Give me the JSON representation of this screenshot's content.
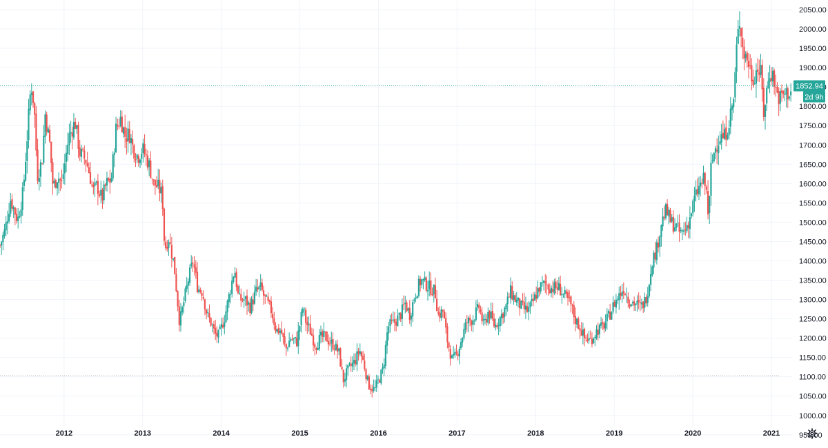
{
  "colors": {
    "up": "#26a69a",
    "down": "#ef5350",
    "grid": "#f0f3fa",
    "axis_text": "#131722",
    "price_line": "#26a69a",
    "reference_line": "#b2b5be",
    "background": "#ffffff"
  },
  "icons": {
    "settings": "gear-icon"
  },
  "chart_data": {
    "type": "candlestick",
    "interval": "weekly",
    "y_axis": {
      "position": "right",
      "ylim": [
        930,
        2075
      ],
      "ticks": [
        950,
        1000,
        1050,
        1100,
        1150,
        1200,
        1250,
        1300,
        1350,
        1400,
        1450,
        1500,
        1550,
        1600,
        1650,
        1700,
        1750,
        1800,
        1850,
        1900,
        1950,
        2000,
        2050
      ],
      "tick_labels": [
        "950.00",
        "1000.00",
        "1050.00",
        "1100.00",
        "1150.00",
        "1200.00",
        "1250.00",
        "1300.00",
        "1350.00",
        "1400.00",
        "1450.00",
        "1500.00",
        "1550.00",
        "1600.00",
        "1650.00",
        "1700.00",
        "1750.00",
        "1800.00",
        "1850.00",
        "1900.00",
        "1950.00",
        "2000.00",
        "2050.00"
      ]
    },
    "x_axis": {
      "xlim": [
        2011.185,
        2021.263
      ],
      "ticks": [
        2012,
        2013,
        2014,
        2015,
        2016,
        2017,
        2018,
        2019,
        2020,
        2021
      ],
      "tick_labels": [
        "2012",
        "2013",
        "2014",
        "2015",
        "2016",
        "2017",
        "2018",
        "2019",
        "2020",
        "2021"
      ]
    },
    "grid": true,
    "last_price": {
      "value": 1852.94,
      "label": "1852.94",
      "countdown": "2d 9h"
    },
    "reference_level": 1103,
    "anchors": [
      [
        2011.185,
        1440
      ],
      [
        2011.25,
        1480
      ],
      [
        2011.32,
        1560
      ],
      [
        2011.41,
        1505
      ],
      [
        2011.48,
        1580
      ],
      [
        2011.53,
        1720
      ],
      [
        2011.58,
        1860
      ],
      [
        2011.62,
        1800
      ],
      [
        2011.66,
        1620
      ],
      [
        2011.72,
        1660
      ],
      [
        2011.76,
        1780
      ],
      [
        2011.82,
        1700
      ],
      [
        2011.86,
        1590
      ],
      [
        2011.92,
        1620
      ],
      [
        2011.97,
        1600
      ],
      [
        2012.06,
        1720
      ],
      [
        2012.14,
        1760
      ],
      [
        2012.2,
        1680
      ],
      [
        2012.28,
        1660
      ],
      [
        2012.33,
        1620
      ],
      [
        2012.37,
        1580
      ],
      [
        2012.42,
        1595
      ],
      [
        2012.48,
        1560
      ],
      [
        2012.54,
        1600
      ],
      [
        2012.6,
        1610
      ],
      [
        2012.66,
        1740
      ],
      [
        2012.72,
        1770
      ],
      [
        2012.78,
        1720
      ],
      [
        2012.83,
        1730
      ],
      [
        2012.88,
        1690
      ],
      [
        2012.94,
        1670
      ],
      [
        2013.0,
        1690
      ],
      [
        2013.08,
        1650
      ],
      [
        2013.14,
        1600
      ],
      [
        2013.2,
        1590
      ],
      [
        2013.25,
        1570
      ],
      [
        2013.28,
        1430
      ],
      [
        2013.33,
        1460
      ],
      [
        2013.4,
        1390
      ],
      [
        2013.47,
        1240
      ],
      [
        2013.52,
        1290
      ],
      [
        2013.58,
        1350
      ],
      [
        2013.64,
        1400
      ],
      [
        2013.7,
        1330
      ],
      [
        2013.76,
        1320
      ],
      [
        2013.82,
        1260
      ],
      [
        2013.87,
        1240
      ],
      [
        2013.92,
        1210
      ],
      [
        2013.97,
        1205
      ],
      [
        2014.05,
        1260
      ],
      [
        2014.12,
        1330
      ],
      [
        2014.17,
        1380
      ],
      [
        2014.22,
        1300
      ],
      [
        2014.3,
        1300
      ],
      [
        2014.37,
        1280
      ],
      [
        2014.44,
        1320
      ],
      [
        2014.5,
        1330
      ],
      [
        2014.56,
        1300
      ],
      [
        2014.64,
        1270
      ],
      [
        2014.7,
        1220
      ],
      [
        2014.76,
        1220
      ],
      [
        2014.82,
        1170
      ],
      [
        2014.88,
        1200
      ],
      [
        2014.96,
        1190
      ],
      [
        2015.04,
        1280
      ],
      [
        2015.08,
        1240
      ],
      [
        2015.14,
        1215
      ],
      [
        2015.2,
        1180
      ],
      [
        2015.26,
        1200
      ],
      [
        2015.32,
        1205
      ],
      [
        2015.38,
        1190
      ],
      [
        2015.44,
        1180
      ],
      [
        2015.5,
        1160
      ],
      [
        2015.55,
        1090
      ],
      [
        2015.62,
        1120
      ],
      [
        2015.7,
        1140
      ],
      [
        2015.76,
        1170
      ],
      [
        2015.82,
        1130
      ],
      [
        2015.87,
        1080
      ],
      [
        2015.95,
        1065
      ],
      [
        2016.02,
        1100
      ],
      [
        2016.06,
        1120
      ],
      [
        2016.12,
        1230
      ],
      [
        2016.2,
        1240
      ],
      [
        2016.28,
        1260
      ],
      [
        2016.34,
        1290
      ],
      [
        2016.4,
        1260
      ],
      [
        2016.46,
        1310
      ],
      [
        2016.54,
        1350
      ],
      [
        2016.6,
        1340
      ],
      [
        2016.66,
        1330
      ],
      [
        2016.72,
        1320
      ],
      [
        2016.76,
        1260
      ],
      [
        2016.82,
        1270
      ],
      [
        2016.87,
        1200
      ],
      [
        2016.94,
        1140
      ],
      [
        2017.0,
        1160
      ],
      [
        2017.06,
        1200
      ],
      [
        2017.12,
        1240
      ],
      [
        2017.2,
        1250
      ],
      [
        2017.28,
        1280
      ],
      [
        2017.34,
        1230
      ],
      [
        2017.4,
        1270
      ],
      [
        2017.48,
        1230
      ],
      [
        2017.54,
        1250
      ],
      [
        2017.62,
        1280
      ],
      [
        2017.68,
        1320
      ],
      [
        2017.74,
        1300
      ],
      [
        2017.82,
        1280
      ],
      [
        2017.9,
        1270
      ],
      [
        2017.96,
        1290
      ],
      [
        2018.04,
        1330
      ],
      [
        2018.12,
        1340
      ],
      [
        2018.2,
        1330
      ],
      [
        2018.3,
        1330
      ],
      [
        2018.36,
        1310
      ],
      [
        2018.44,
        1290
      ],
      [
        2018.5,
        1250
      ],
      [
        2018.56,
        1230
      ],
      [
        2018.62,
        1200
      ],
      [
        2018.7,
        1195
      ],
      [
        2018.78,
        1220
      ],
      [
        2018.86,
        1230
      ],
      [
        2018.94,
        1260
      ],
      [
        2019.0,
        1290
      ],
      [
        2019.06,
        1310
      ],
      [
        2019.12,
        1330
      ],
      [
        2019.18,
        1300
      ],
      [
        2019.26,
        1290
      ],
      [
        2019.34,
        1280
      ],
      [
        2019.4,
        1300
      ],
      [
        2019.44,
        1340
      ],
      [
        2019.48,
        1400
      ],
      [
        2019.54,
        1430
      ],
      [
        2019.6,
        1500
      ],
      [
        2019.66,
        1530
      ],
      [
        2019.72,
        1500
      ],
      [
        2019.78,
        1490
      ],
      [
        2019.84,
        1470
      ],
      [
        2019.9,
        1480
      ],
      [
        2019.96,
        1510
      ],
      [
        2020.02,
        1560
      ],
      [
        2020.08,
        1590
      ],
      [
        2020.14,
        1610
      ],
      [
        2020.18,
        1570
      ],
      [
        2020.2,
        1500
      ],
      [
        2020.23,
        1640
      ],
      [
        2020.28,
        1690
      ],
      [
        2020.34,
        1720
      ],
      [
        2020.4,
        1720
      ],
      [
        2020.46,
        1760
      ],
      [
        2020.52,
        1820
      ],
      [
        2020.56,
        1960
      ],
      [
        2020.6,
        2030
      ],
      [
        2020.64,
        1940
      ],
      [
        2020.7,
        1920
      ],
      [
        2020.76,
        1870
      ],
      [
        2020.82,
        1900
      ],
      [
        2020.87,
        1880
      ],
      [
        2020.9,
        1780
      ],
      [
        2020.94,
        1840
      ],
      [
        2020.98,
        1890
      ],
      [
        2021.02,
        1880
      ],
      [
        2021.06,
        1840
      ],
      [
        2021.1,
        1820
      ],
      [
        2021.15,
        1830
      ],
      [
        2021.263,
        1840
      ]
    ]
  }
}
